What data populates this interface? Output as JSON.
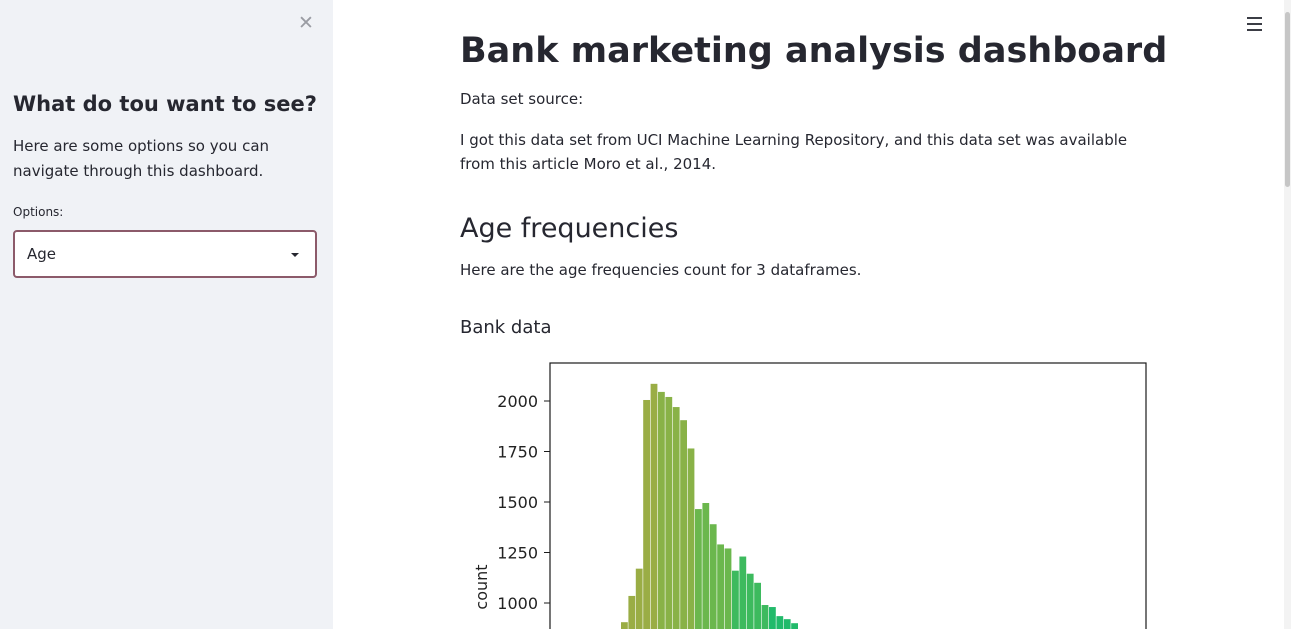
{
  "sidebar": {
    "close_label": "✕",
    "title": "What do tou want to see?",
    "description": "Here are some options so you can navigate through this dashboard.",
    "options_label": "Options:",
    "selected_option": "Age"
  },
  "main": {
    "title": "Bank marketing analysis dashboard",
    "source_label": "Data set source:",
    "source_text": "I got this data set from UCI Machine Learning Repository, and this data set was available from this article Moro et al., 2014.",
    "age_heading": "Age frequencies",
    "age_text": "Here are the age frequencies count for 3 dataframes.",
    "bank_heading": "Bank data"
  },
  "chart_data": {
    "type": "bar",
    "ylabel": "count",
    "yticks": [
      1000,
      1250,
      1500,
      1750,
      2000
    ],
    "ylim_visible": [
      940,
      2190
    ],
    "colors": [
      "#9aad45",
      "#89b247",
      "#6bb74d",
      "#3dba5e",
      "#22ba6b"
    ],
    "values": [
      905,
      1035,
      1170,
      2005,
      2085,
      2045,
      2020,
      1970,
      1905,
      1765,
      1465,
      1495,
      1390,
      1290,
      1270,
      1160,
      1230,
      1145,
      1100,
      990,
      980,
      935,
      920,
      900
    ]
  }
}
